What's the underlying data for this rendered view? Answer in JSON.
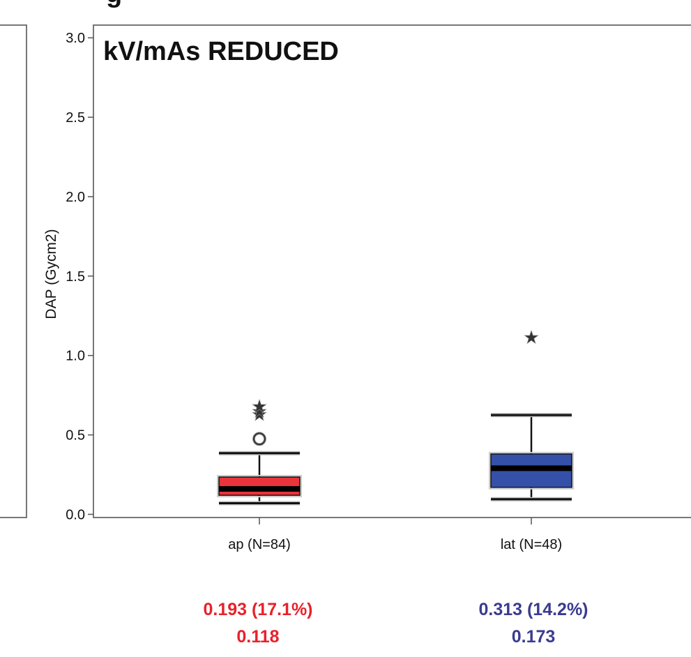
{
  "header_fragment": "g",
  "chart_data": {
    "type": "boxplot",
    "title": "kV/mAs REDUCED",
    "ylabel": "DAP (Gycm2)",
    "xlabel": "",
    "ylim": [
      -0.02,
      3.08
    ],
    "yticks": [
      "0.0",
      "0.5",
      "1.0",
      "1.5",
      "2.0",
      "2.5",
      "3.0"
    ],
    "ytick_values": [
      0,
      0.5,
      1.0,
      1.5,
      2.0,
      2.5,
      3.0
    ],
    "grid": false,
    "categories": [
      "ap (N=84)",
      "lat (N=48)"
    ],
    "series": [
      {
        "color": "#e8343a",
        "whisker_low": 0.07,
        "q1": 0.12,
        "median": 0.16,
        "q3": 0.235,
        "whisker_high": 0.385,
        "outliers": [
          0.475
        ],
        "extremes": [
          0.635,
          0.655,
          0.685
        ]
      },
      {
        "color": "#3550a8",
        "whisker_low": 0.095,
        "q1": 0.17,
        "median": 0.29,
        "q3": 0.38,
        "whisker_high": 0.625,
        "outliers": [],
        "extremes": [
          1.12
        ]
      }
    ],
    "annotations": [
      {
        "line1": "0.193 (17.1%)",
        "line2": "0.118",
        "color": "#e8212a"
      },
      {
        "line1": "0.313 (14.2%)",
        "line2": "0.173",
        "color": "#3a3b8f"
      }
    ]
  }
}
